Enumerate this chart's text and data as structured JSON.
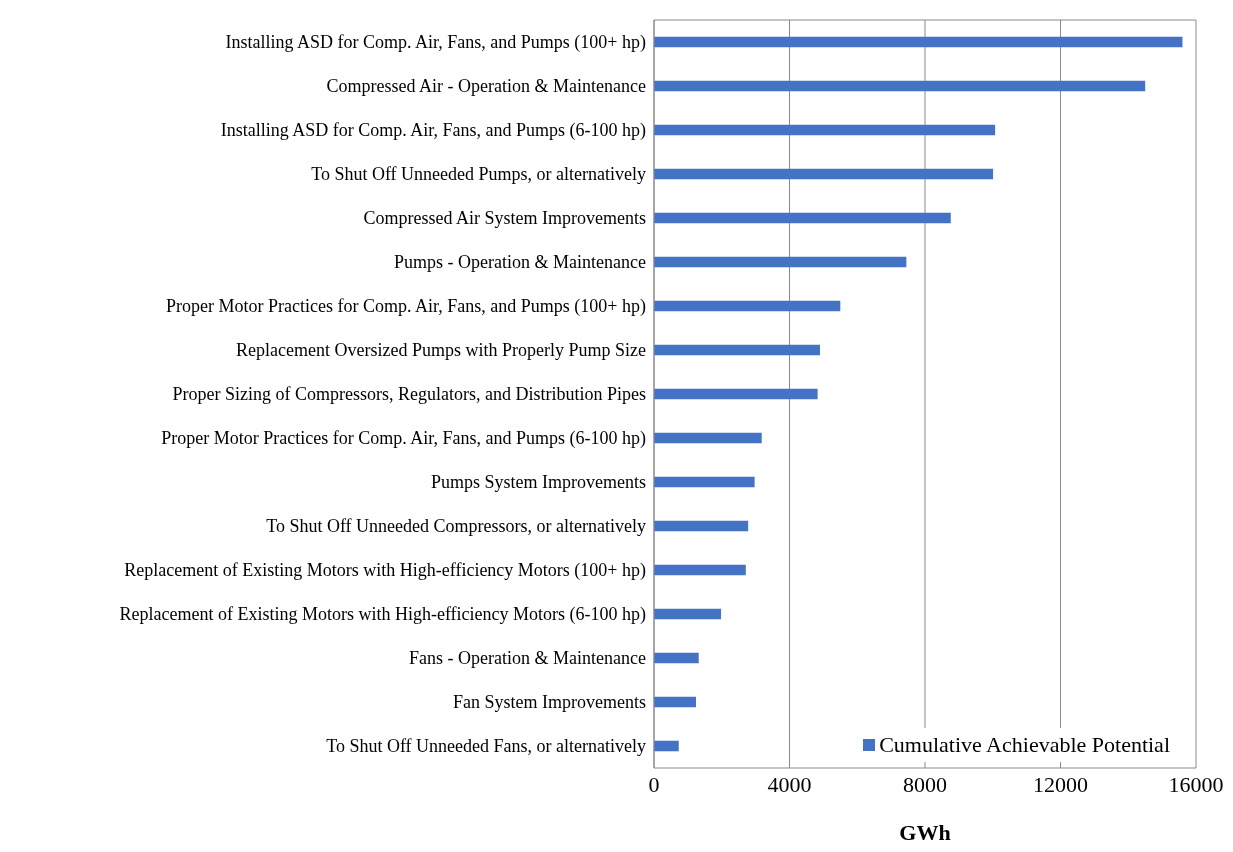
{
  "chart_data": {
    "type": "bar",
    "orientation": "horizontal",
    "xlabel": "GWh",
    "categories": [
      "Installing ASD for Comp. Air, Fans, and Pumps (100+ hp)",
      "Compressed Air - Operation & Maintenance",
      "Installing ASD for Comp. Air, Fans, and Pumps (6-100 hp)",
      "To Shut Off Unneeded Pumps, or alternatively",
      "Compressed Air System Improvements",
      "Pumps - Operation & Maintenance",
      "Proper Motor Practices for Comp. Air, Fans, and Pumps (100+ hp)",
      "Replacement Oversized Pumps with Properly Pump Size",
      "Proper Sizing of Compressors, Regulators, and Distribution Pipes",
      "Proper Motor Practices for Comp. Air, Fans, and Pumps (6-100 hp)",
      "Pumps System Improvements",
      "To Shut Off Unneeded Compressors, or alternatively",
      "Replacement of Existing Motors with High-efficiency Motors (100+ hp)",
      "Replacement of Existing Motors with High-efficiency Motors (6-100 hp)",
      "Fans - Operation & Maintenance",
      "Fan System Improvements",
      "To Shut Off Unneeded Fans, or alternatively"
    ],
    "series": [
      {
        "name": "Cumulative Achievable Potential",
        "color": "#4472c4",
        "values": [
          15600,
          14500,
          10070,
          10010,
          8760,
          7450,
          5500,
          4900,
          4830,
          3180,
          2970,
          2780,
          2710,
          1980,
          1320,
          1240,
          730
        ]
      }
    ],
    "xlim": [
      0,
      16000
    ],
    "xticks": [
      0,
      4000,
      8000,
      12000,
      16000
    ],
    "grid": "x",
    "legend": "bottom right"
  }
}
